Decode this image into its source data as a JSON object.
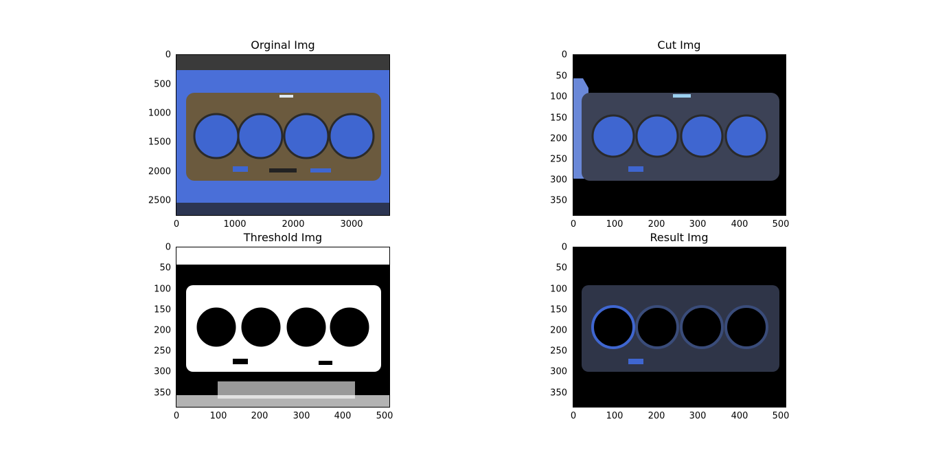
{
  "panels": [
    {
      "key": "original",
      "title": "Orginal Img",
      "yticks": [
        "0",
        "500",
        "1000",
        "1500",
        "2000",
        "2500"
      ],
      "xticks": [
        "0",
        "1000",
        "2000",
        "3000"
      ],
      "image_kind": "photo-blue-background"
    },
    {
      "key": "cut",
      "title": "Cut Img",
      "yticks": [
        "0",
        "50",
        "100",
        "150",
        "200",
        "250",
        "300",
        "350"
      ],
      "xticks": [
        "0",
        "100",
        "200",
        "300",
        "400",
        "500"
      ],
      "image_kind": "cutout-on-black"
    },
    {
      "key": "threshold",
      "title": "Threshold Img",
      "yticks": [
        "0",
        "50",
        "100",
        "150",
        "200",
        "250",
        "300",
        "350"
      ],
      "xticks": [
        "0",
        "100",
        "200",
        "300",
        "400",
        "500"
      ],
      "image_kind": "binary-white"
    },
    {
      "key": "result",
      "title": "Result Img",
      "yticks": [
        "0",
        "50",
        "100",
        "150",
        "200",
        "250",
        "300",
        "350"
      ],
      "xticks": [
        "0",
        "100",
        "200",
        "300",
        "400",
        "500"
      ],
      "image_kind": "edges-on-black"
    }
  ],
  "colors": {
    "blue_background": "#4a6fd8",
    "gasket_rust": "#6b5a3e",
    "bore_blue": "#3f66d0",
    "black": "#000000",
    "white": "#ffffff"
  }
}
